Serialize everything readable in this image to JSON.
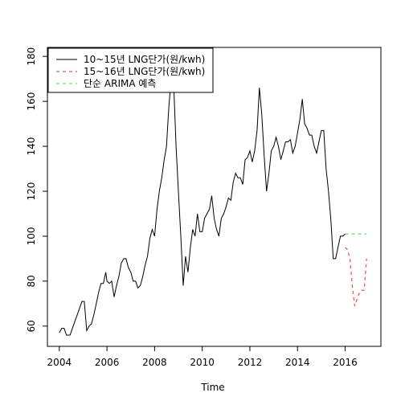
{
  "chart_data": {
    "type": "line",
    "xlabel": "Time",
    "ylabel": "",
    "xlim": [
      2003.5,
      2017.5
    ],
    "ylim": [
      51,
      184
    ],
    "x_ticks": [
      2004,
      2006,
      2008,
      2010,
      2012,
      2014,
      2016
    ],
    "x_tick_labels": [
      "2004",
      "2006",
      "2008",
      "2010",
      "2012",
      "2014",
      "2016"
    ],
    "y_ticks": [
      60,
      80,
      100,
      120,
      140,
      160,
      180
    ],
    "y_tick_labels": [
      "60",
      "80",
      "100",
      "120",
      "140",
      "160",
      "180"
    ],
    "grid": false,
    "legend_position": "top-left",
    "series": [
      {
        "name": "10~15년 LNG단가(원/kwh)",
        "color": "#000000",
        "style": "solid",
        "x": [
          2004.0,
          2004.1,
          2004.2,
          2004.3,
          2004.45,
          2004.55,
          2004.65,
          2004.75,
          2004.85,
          2004.95,
          2005.05,
          2005.15,
          2005.25,
          2005.35,
          2005.45,
          2005.55,
          2005.65,
          2005.75,
          2005.85,
          2005.95,
          2006.0,
          2006.1,
          2006.2,
          2006.3,
          2006.4,
          2006.5,
          2006.6,
          2006.7,
          2006.8,
          2006.9,
          2007.0,
          2007.1,
          2007.2,
          2007.3,
          2007.4,
          2007.5,
          2007.6,
          2007.7,
          2007.8,
          2007.9,
          2008.0,
          2008.1,
          2008.2,
          2008.3,
          2008.4,
          2008.5,
          2008.6,
          2008.7,
          2008.8,
          2008.9,
          2009.0,
          2009.1,
          2009.2,
          2009.3,
          2009.4,
          2009.5,
          2009.6,
          2009.7,
          2009.8,
          2009.9,
          2010.0,
          2010.1,
          2010.2,
          2010.3,
          2010.4,
          2010.5,
          2010.6,
          2010.7,
          2010.8,
          2010.9,
          2011.0,
          2011.1,
          2011.2,
          2011.3,
          2011.4,
          2011.5,
          2011.6,
          2011.7,
          2011.8,
          2011.9,
          2012.0,
          2012.1,
          2012.2,
          2012.3,
          2012.4,
          2012.5,
          2012.6,
          2012.7,
          2012.8,
          2012.9,
          2013.0,
          2013.1,
          2013.2,
          2013.3,
          2013.4,
          2013.5,
          2013.6,
          2013.7,
          2013.8,
          2013.9,
          2014.0,
          2014.1,
          2014.2,
          2014.3,
          2014.4,
          2014.5,
          2014.6,
          2014.7,
          2014.8,
          2014.9,
          2015.0,
          2015.1,
          2015.2,
          2015.3,
          2015.4,
          2015.5,
          2015.6,
          2015.7,
          2015.8,
          2015.9,
          2016.0
        ],
        "values": [
          57,
          59,
          59,
          56,
          56,
          59,
          62,
          65,
          68,
          71,
          71,
          58,
          60,
          61,
          65,
          70,
          75,
          79,
          79,
          84,
          80,
          79,
          80,
          73,
          78,
          82,
          88,
          90,
          90,
          86,
          84,
          80,
          80,
          77,
          78,
          82,
          87,
          91,
          99,
          103,
          100,
          112,
          120,
          126,
          134,
          140,
          158,
          170,
          168,
          140,
          120,
          100,
          78,
          91,
          84,
          95,
          103,
          100,
          110,
          102,
          102,
          108,
          110,
          112,
          118,
          108,
          103,
          100,
          108,
          110,
          113,
          117,
          116,
          124,
          128,
          126,
          126,
          123,
          134,
          135,
          138,
          133,
          138,
          147,
          166,
          154,
          136,
          120,
          128,
          138,
          140,
          144,
          140,
          134,
          138,
          142,
          142,
          143,
          137,
          140,
          146,
          152,
          161,
          150,
          148,
          145,
          145,
          140,
          137,
          142,
          147,
          147,
          130,
          120,
          107,
          90,
          90,
          95,
          100,
          100,
          101
        ]
      },
      {
        "name": "15~16년 LNG단가(원/kwh)",
        "color": "#f0506a",
        "style": "dashed",
        "x": [
          2016.0,
          2016.1,
          2016.2,
          2016.3,
          2016.4,
          2016.5,
          2016.6,
          2016.7,
          2016.8,
          2016.9
        ],
        "values": [
          95,
          94,
          90,
          78,
          69,
          72,
          75,
          76,
          76,
          90
        ]
      },
      {
        "name": "단순 ARIMA 예측",
        "color": "#7fd87f",
        "style": "dashed",
        "x": [
          2016.0,
          2016.9
        ],
        "values": [
          101,
          101
        ]
      }
    ]
  }
}
